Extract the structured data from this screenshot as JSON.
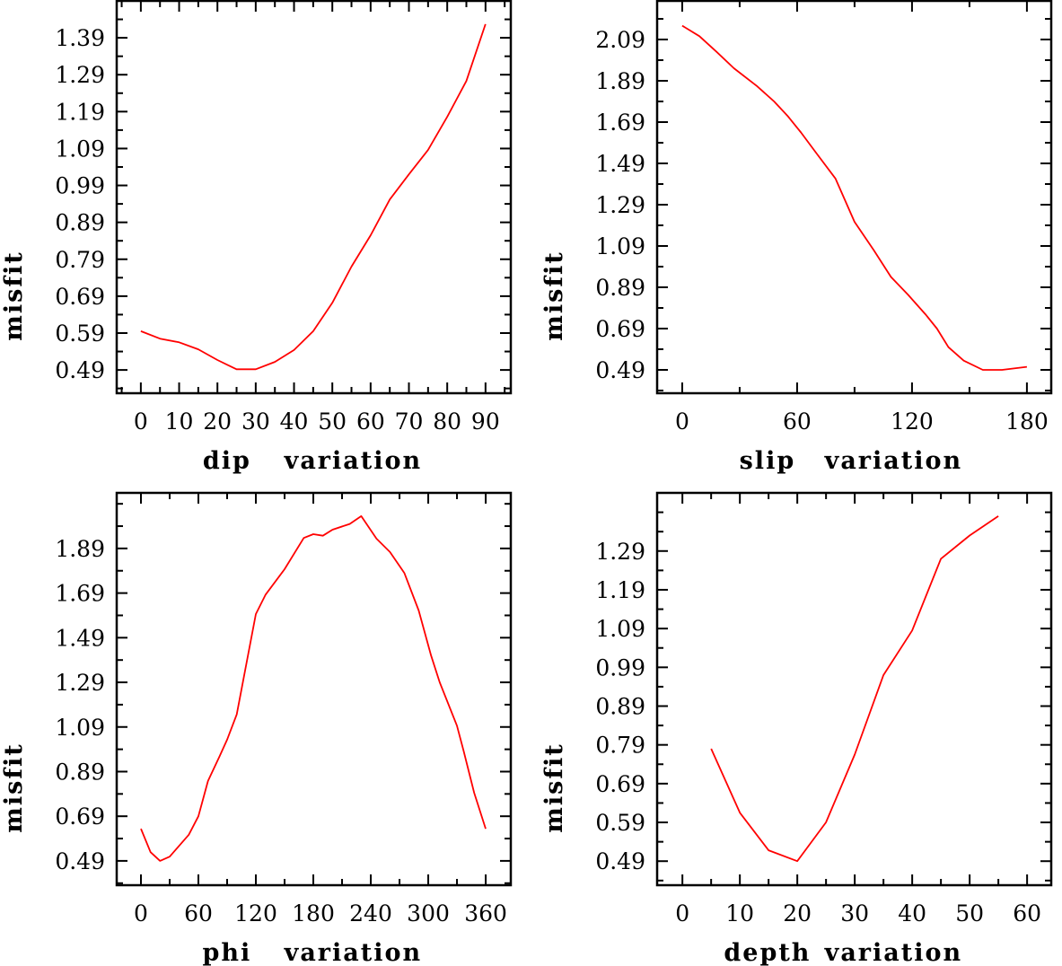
{
  "line_color": "#ff0000",
  "chart_data": [
    {
      "type": "line",
      "id": "dip",
      "xlabel_left": "dip",
      "xlabel_right": "variation",
      "ylabel": "misfit",
      "xlim": [
        -6.3,
        96.6
      ],
      "ylim": [
        0.427,
        1.49
      ],
      "x_major_ticks": [
        0,
        10,
        20,
        30,
        40,
        50,
        60,
        70,
        80,
        90
      ],
      "x_tick_labels": [
        "0",
        "10",
        "20",
        "30",
        "40",
        "50",
        "60",
        "70",
        "80",
        "90"
      ],
      "x_minor_step": 5,
      "y_major_ticks": [
        0.49,
        0.59,
        0.69,
        0.79,
        0.89,
        0.99,
        1.09,
        1.19,
        1.29,
        1.39
      ],
      "y_tick_labels": [
        "0.49",
        "0.59",
        "0.69",
        "0.79",
        "0.89",
        "0.99",
        "1.09",
        "1.19",
        "1.29",
        "1.39"
      ],
      "y_minor_step": 0.05,
      "series": [
        {
          "name": "misfit",
          "x": [
            0,
            5,
            10,
            15,
            20,
            25,
            30,
            35,
            40,
            45,
            50,
            55,
            60,
            65,
            70,
            75,
            80,
            85,
            90
          ],
          "y": [
            0.595,
            0.575,
            0.565,
            0.546,
            0.517,
            0.492,
            0.492,
            0.512,
            0.544,
            0.595,
            0.672,
            0.77,
            0.855,
            0.952,
            1.02,
            1.086,
            1.176,
            1.273,
            1.427
          ]
        }
      ]
    },
    {
      "type": "line",
      "id": "slip",
      "xlabel_left": "slip",
      "xlabel_right": "variation",
      "ylabel": "misfit",
      "xlim": [
        -13.1,
        192.7
      ],
      "ylim": [
        0.377,
        2.277
      ],
      "x_major_ticks": [
        0,
        60,
        120,
        180
      ],
      "x_tick_labels": [
        "0",
        "60",
        "120",
        "180"
      ],
      "x_minor_step": 30,
      "y_major_ticks": [
        0.49,
        0.69,
        0.89,
        1.09,
        1.29,
        1.49,
        1.69,
        1.89,
        2.09
      ],
      "y_tick_labels": [
        "0.49",
        "0.69",
        "0.89",
        "1.09",
        "1.29",
        "1.49",
        "1.69",
        "1.89",
        "2.09"
      ],
      "y_minor_step": 0.1,
      "series": [
        {
          "name": "misfit",
          "x": [
            0,
            9,
            18,
            27,
            39,
            48,
            55,
            62,
            70,
            80,
            90,
            100,
            109,
            118,
            127,
            133,
            139,
            147,
            157,
            167,
            180
          ],
          "y": [
            2.157,
            2.106,
            2.03,
            1.951,
            1.865,
            1.79,
            1.72,
            1.64,
            1.54,
            1.417,
            1.207,
            1.07,
            0.94,
            0.853,
            0.759,
            0.69,
            0.6,
            0.535,
            0.49,
            0.49,
            0.505
          ]
        }
      ]
    },
    {
      "type": "line",
      "id": "phi",
      "xlabel_left": "phi",
      "xlabel_right": "variation",
      "ylabel": "misfit",
      "xlim": [
        -25.3,
        386.2
      ],
      "ylim": [
        0.381,
        2.139
      ],
      "x_major_ticks": [
        0,
        60,
        120,
        180,
        240,
        300,
        360
      ],
      "x_tick_labels": [
        "0",
        "60",
        "120",
        "180",
        "240",
        "300",
        "360"
      ],
      "x_minor_step": 30,
      "y_major_ticks": [
        0.49,
        0.69,
        0.89,
        1.09,
        1.29,
        1.49,
        1.69,
        1.89
      ],
      "y_tick_labels": [
        "0.49",
        "0.69",
        "0.89",
        "1.09",
        "1.29",
        "1.49",
        "1.69",
        "1.89"
      ],
      "y_minor_step": 0.1,
      "series": [
        {
          "name": "misfit",
          "x": [
            0,
            10,
            20,
            30,
            50,
            60,
            70,
            82,
            90,
            100,
            120,
            130,
            150,
            170,
            180,
            190,
            200,
            218,
            230,
            246,
            260,
            275,
            290,
            303,
            312,
            330,
            337,
            348,
            360
          ],
          "y": [
            0.634,
            0.529,
            0.49,
            0.509,
            0.607,
            0.69,
            0.848,
            0.958,
            1.033,
            1.146,
            1.596,
            1.682,
            1.797,
            1.937,
            1.954,
            1.947,
            1.974,
            2.0,
            2.035,
            1.934,
            1.874,
            1.78,
            1.612,
            1.41,
            1.29,
            1.096,
            0.982,
            0.795,
            0.634
          ]
        }
      ]
    },
    {
      "type": "line",
      "id": "depth",
      "xlabel_left": "depth",
      "xlabel_right": "variation",
      "ylabel": "misfit",
      "xlim": [
        -4.4,
        64.2
      ],
      "ylim": [
        0.428,
        1.44
      ],
      "x_major_ticks": [
        0,
        10,
        20,
        30,
        40,
        50,
        60
      ],
      "x_tick_labels": [
        "0",
        "10",
        "20",
        "30",
        "40",
        "50",
        "60"
      ],
      "x_minor_step": 5,
      "y_major_ticks": [
        0.49,
        0.59,
        0.69,
        0.79,
        0.89,
        0.99,
        1.09,
        1.19,
        1.29
      ],
      "y_tick_labels": [
        "0.49",
        "0.59",
        "0.69",
        "0.79",
        "0.89",
        "0.99",
        "1.09",
        "1.19",
        "1.29"
      ],
      "y_minor_step": 0.05,
      "series": [
        {
          "name": "misfit",
          "x": [
            5,
            10,
            15,
            20,
            25,
            30,
            35,
            40,
            45,
            50,
            55
          ],
          "y": [
            0.78,
            0.615,
            0.518,
            0.49,
            0.59,
            0.765,
            0.97,
            1.085,
            1.27,
            1.33,
            1.38
          ]
        }
      ]
    }
  ]
}
